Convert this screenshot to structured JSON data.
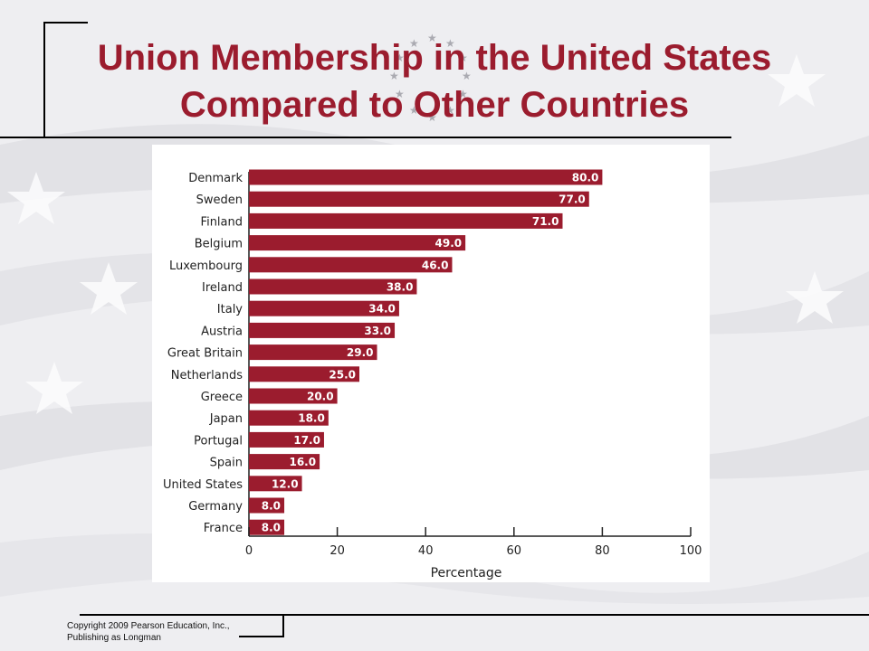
{
  "slide": {
    "title_line1": "Union Membership in the United States",
    "title_line2": "Compared to Other Countries",
    "copyright_line1": "Copyright 2009 Pearson Education, Inc.,",
    "copyright_line2": "Publishing as Longman"
  },
  "colors": {
    "title": "#9b1c2e",
    "bar": "#9b1c2e"
  },
  "chart_data": {
    "type": "bar",
    "orientation": "horizontal",
    "categories": [
      "Denmark",
      "Sweden",
      "Finland",
      "Belgium",
      "Luxembourg",
      "Ireland",
      "Italy",
      "Austria",
      "Great Britain",
      "Netherlands",
      "Greece",
      "Japan",
      "Portugal",
      "Spain",
      "United States",
      "Germany",
      "France"
    ],
    "values": [
      80.0,
      77.0,
      71.0,
      49.0,
      46.0,
      38.0,
      34.0,
      33.0,
      29.0,
      25.0,
      20.0,
      18.0,
      17.0,
      16.0,
      12.0,
      8.0,
      8.0
    ],
    "value_labels": [
      "80.0",
      "77.0",
      "71.0",
      "49.0",
      "46.0",
      "38.0",
      "34.0",
      "33.0",
      "29.0",
      "25.0",
      "20.0",
      "18.0",
      "17.0",
      "16.0",
      "12.0",
      "8.0",
      "8.0"
    ],
    "xlabel": "Percentage",
    "ylabel": "",
    "title": "",
    "xlim": [
      0,
      100
    ],
    "xticks": [
      0,
      20,
      40,
      60,
      80,
      100
    ],
    "grid": false,
    "legend": "none"
  }
}
